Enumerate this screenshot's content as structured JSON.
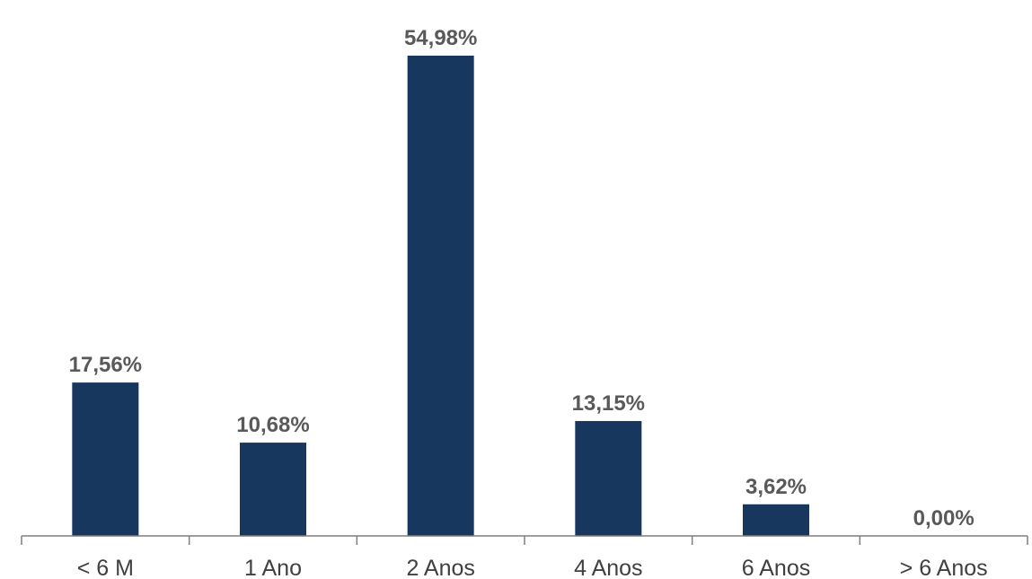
{
  "chart_data": {
    "type": "bar",
    "categories": [
      "< 6 M",
      "1 Ano",
      "2 Anos",
      "4 Anos",
      "6 Anos",
      "> 6 Anos"
    ],
    "values": [
      17.56,
      10.68,
      54.98,
      13.15,
      3.62,
      0.0
    ],
    "data_labels": [
      "17,56%",
      "10,68%",
      "54,98%",
      "13,15%",
      "3,62%",
      "0,00%"
    ],
    "title": "",
    "xlabel": "",
    "ylabel": "",
    "ylim": [
      0,
      54.98
    ],
    "grid": false,
    "legend": "none",
    "bar_color": "#17375e",
    "label_color": "#595959",
    "tick_label_color": "#404040",
    "axis_color": "#7f7f7f"
  }
}
